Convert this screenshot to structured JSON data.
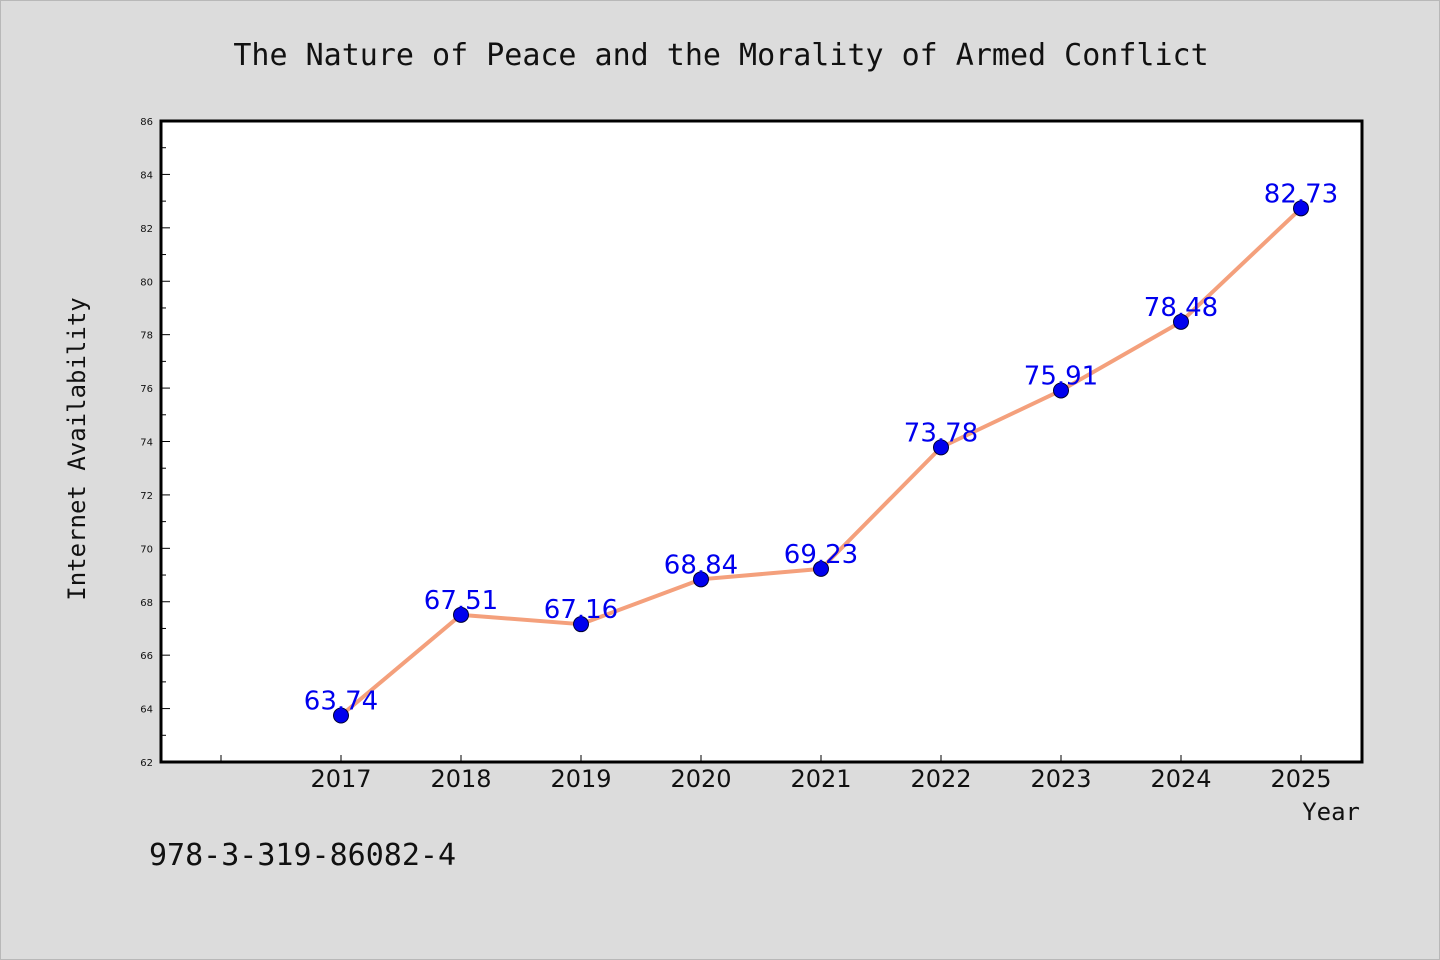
{
  "chart_data": {
    "type": "line",
    "title": "The Nature of Peace and the Morality of Armed Conflict",
    "xlabel": "Year",
    "ylabel": "Internet Availability",
    "categories": [
      "2017",
      "2018",
      "2019",
      "2020",
      "2021",
      "2022",
      "2023",
      "2024",
      "2025"
    ],
    "series": [
      {
        "values": [
          63.74,
          67.51,
          67.16,
          68.84,
          69.23,
          73.78,
          75.91,
          78.48,
          82.73
        ],
        "labels": [
          "63.74",
          "67.51",
          "67.16",
          "68.84",
          "69.23",
          "73.78",
          "75.91",
          "78.48",
          "82.73"
        ],
        "line_color": "#f4a07c",
        "marker_color": "#0000ee"
      }
    ],
    "ylim": [
      62,
      86
    ],
    "yticks": [
      "62",
      "64",
      "66",
      "68",
      "70",
      "72",
      "74",
      "76",
      "78",
      "80",
      "82",
      "84",
      "86"
    ],
    "grid": false,
    "legend": "none"
  },
  "footer": {
    "isbn": "978-3-319-86082-4"
  },
  "colors": {
    "background": "#dcdcdc",
    "plot_background": "#ffffff",
    "line": "#f4a07c",
    "marker": "#0000ee",
    "data_label": "#0000ee"
  }
}
